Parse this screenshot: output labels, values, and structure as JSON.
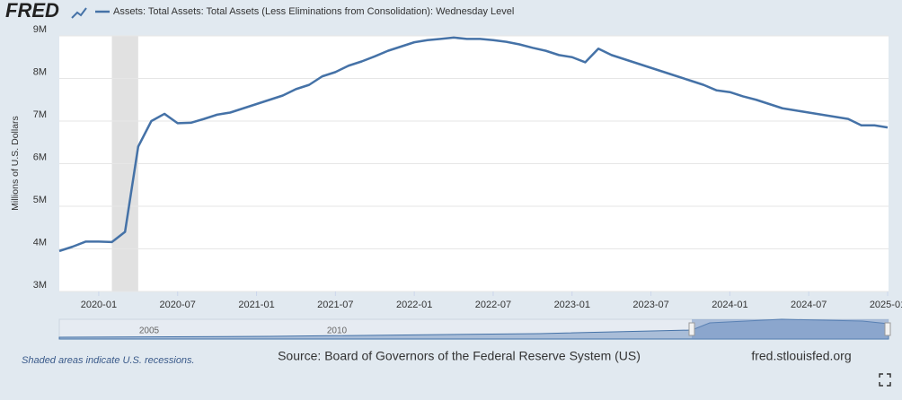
{
  "chart_data": {
    "type": "line",
    "logo": "FRED",
    "y_label": "Millions of U.S. Dollars",
    "x": [
      "2019-10",
      "2019-11",
      "2019-12",
      "2020-01",
      "2020-02",
      "2020-03",
      "2020-04",
      "2020-05",
      "2020-06",
      "2020-07",
      "2020-08",
      "2020-09",
      "2020-10",
      "2020-11",
      "2020-12",
      "2021-01",
      "2021-02",
      "2021-03",
      "2021-04",
      "2021-05",
      "2021-06",
      "2021-07",
      "2021-08",
      "2021-09",
      "2021-10",
      "2021-11",
      "2021-12",
      "2022-01",
      "2022-02",
      "2022-03",
      "2022-04",
      "2022-05",
      "2022-06",
      "2022-07",
      "2022-08",
      "2022-09",
      "2022-10",
      "2022-11",
      "2022-12",
      "2023-01",
      "2023-02",
      "2023-03",
      "2023-04",
      "2023-05",
      "2023-06",
      "2023-07",
      "2023-08",
      "2023-09",
      "2023-10",
      "2023-11",
      "2023-12",
      "2024-01",
      "2024-02",
      "2024-03",
      "2024-04",
      "2024-05",
      "2024-06",
      "2024-07",
      "2024-08",
      "2024-09",
      "2024-10",
      "2024-11",
      "2024-12",
      "2025-01"
    ],
    "series": [
      {
        "name": "Assets: Total Assets: Total Assets (Less Eliminations from Consolidation): Wednesday Level",
        "color": "#4572a7",
        "values": [
          3950000,
          4050000,
          4170000,
          4170000,
          4160000,
          4400000,
          6400000,
          7000000,
          7170000,
          6950000,
          6960000,
          7050000,
          7150000,
          7200000,
          7300000,
          7400000,
          7500000,
          7600000,
          7750000,
          7850000,
          8050000,
          8150000,
          8300000,
          8400000,
          8520000,
          8650000,
          8750000,
          8850000,
          8900000,
          8930000,
          8960000,
          8930000,
          8930000,
          8900000,
          8860000,
          8800000,
          8720000,
          8650000,
          8550000,
          8500000,
          8380000,
          8700000,
          8550000,
          8450000,
          8350000,
          8250000,
          8150000,
          8050000,
          7950000,
          7850000,
          7720000,
          7680000,
          7580000,
          7500000,
          7400000,
          7300000,
          7250000,
          7200000,
          7150000,
          7100000,
          7050000,
          6900000,
          6900000,
          6850000
        ]
      }
    ],
    "shaded_periods": [
      [
        "2020-02",
        "2020-04"
      ]
    ],
    "xlim": [
      "2019-10",
      "2025-01"
    ],
    "xticks": [
      "2020-01",
      "2020-07",
      "2021-01",
      "2021-07",
      "2022-01",
      "2022-07",
      "2023-01",
      "2023-07",
      "2024-01",
      "2024-07",
      "2025-01"
    ],
    "ylim": [
      3000000,
      9000000
    ],
    "yticks": [
      {
        "value": 3000000,
        "label": "3M"
      },
      {
        "value": 4000000,
        "label": "4M"
      },
      {
        "value": 5000000,
        "label": "5M"
      },
      {
        "value": 6000000,
        "label": "6M"
      },
      {
        "value": 7000000,
        "label": "7M"
      },
      {
        "value": 8000000,
        "label": "8M"
      },
      {
        "value": 9000000,
        "label": "9M"
      }
    ],
    "grid": true,
    "navigator_labels": [
      "2005",
      "2010"
    ],
    "footnote": "Shaded areas indicate U.S. recessions.",
    "source": "Source: Board of Governors of the Federal Reserve System (US)",
    "site": "fred.stlouisfed.org"
  }
}
